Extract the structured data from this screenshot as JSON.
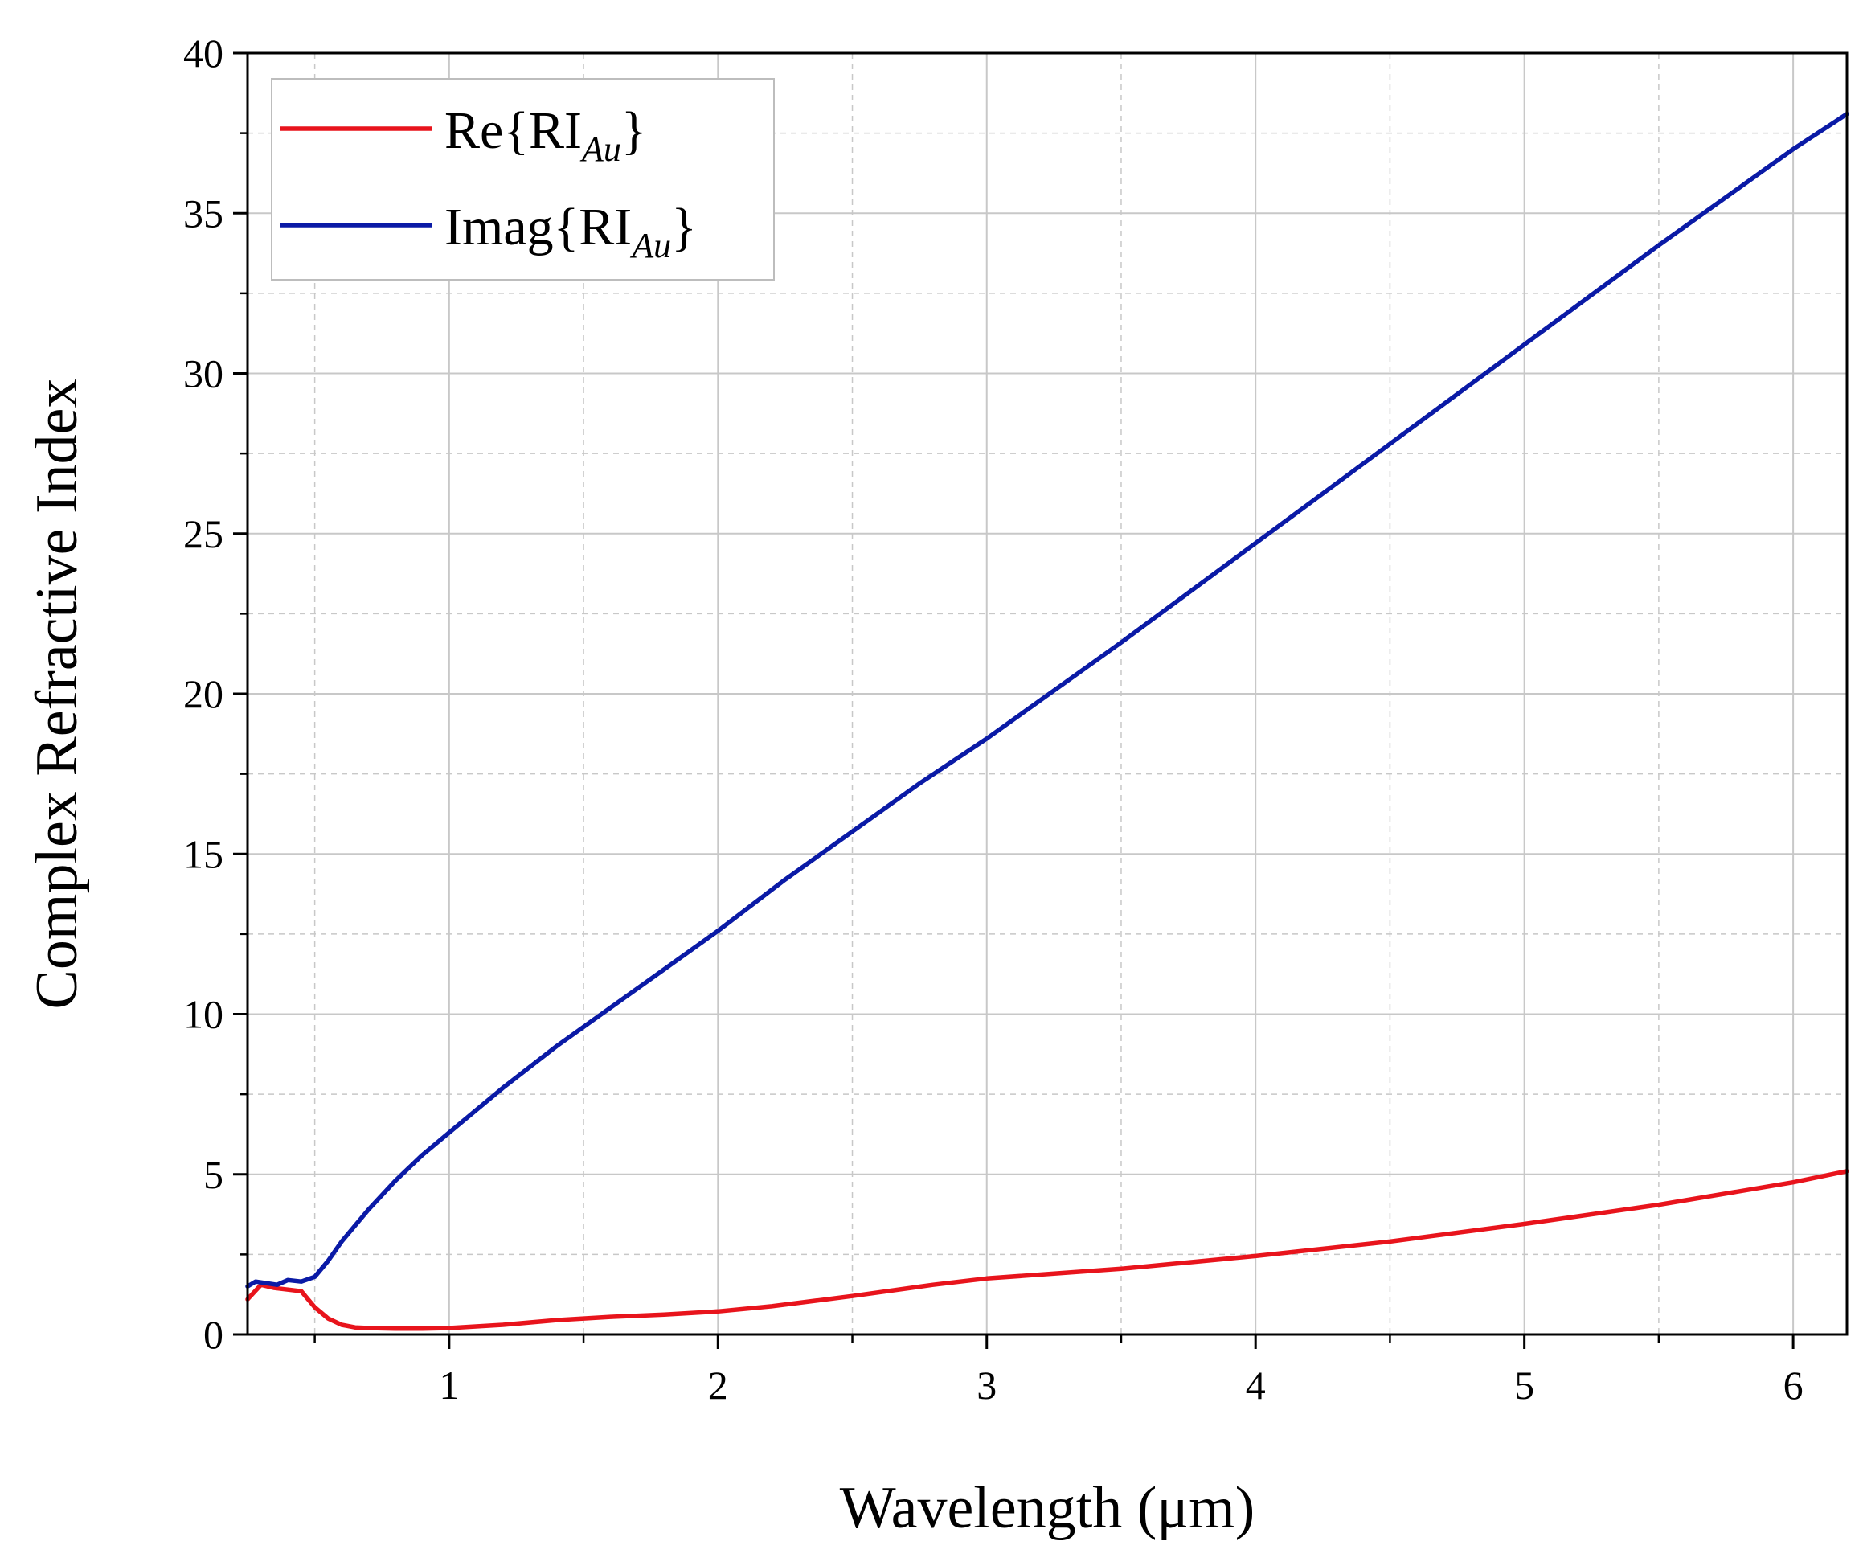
{
  "chart_data": {
    "type": "line",
    "title": "",
    "xlabel": "Wavelength (μm)",
    "ylabel": "Complex Refractive Index",
    "xlim": [
      0.25,
      6.2
    ],
    "ylim": [
      0,
      40
    ],
    "xticks": [
      1,
      2,
      3,
      4,
      5,
      6
    ],
    "yticks": [
      0,
      5,
      10,
      15,
      20,
      25,
      30,
      35,
      40
    ],
    "grid": true,
    "legend_position": "top-left",
    "colors": {
      "re": "#e8141c",
      "imag": "#0a1aa6",
      "axis": "#000000",
      "grid": "#c8c8c8"
    },
    "series": [
      {
        "key": "re",
        "legend": {
          "prefix": "Re{RI",
          "sub": "Au",
          "suffix": "}"
        },
        "color": "#e8141c",
        "x": [
          0.25,
          0.3,
          0.35,
          0.4,
          0.45,
          0.5,
          0.55,
          0.6,
          0.65,
          0.7,
          0.8,
          0.9,
          1.0,
          1.2,
          1.4,
          1.6,
          1.8,
          2.0,
          2.2,
          2.5,
          2.8,
          3.0,
          3.5,
          4.0,
          4.5,
          5.0,
          5.5,
          6.0,
          6.2
        ],
        "values": [
          1.1,
          1.55,
          1.45,
          1.4,
          1.35,
          0.85,
          0.5,
          0.3,
          0.22,
          0.2,
          0.18,
          0.18,
          0.2,
          0.3,
          0.45,
          0.55,
          0.62,
          0.72,
          0.88,
          1.2,
          1.55,
          1.75,
          2.05,
          2.45,
          2.9,
          3.45,
          4.05,
          4.75,
          5.1
        ]
      },
      {
        "key": "imag",
        "legend": {
          "prefix": "Imag{RI",
          "sub": "Au",
          "suffix": "}"
        },
        "color": "#0a1aa6",
        "x": [
          0.25,
          0.28,
          0.32,
          0.36,
          0.4,
          0.45,
          0.5,
          0.55,
          0.6,
          0.7,
          0.8,
          0.9,
          1.0,
          1.2,
          1.4,
          1.6,
          1.8,
          2.0,
          2.25,
          2.5,
          2.75,
          3.0,
          3.5,
          4.0,
          4.5,
          5.0,
          5.5,
          6.0,
          6.2
        ],
        "values": [
          1.5,
          1.65,
          1.6,
          1.55,
          1.7,
          1.65,
          1.8,
          2.3,
          2.9,
          3.9,
          4.8,
          5.6,
          6.3,
          7.7,
          9.0,
          10.2,
          11.4,
          12.6,
          14.2,
          15.7,
          17.2,
          18.6,
          21.6,
          24.7,
          27.8,
          30.9,
          34.0,
          37.0,
          38.1
        ]
      }
    ]
  }
}
